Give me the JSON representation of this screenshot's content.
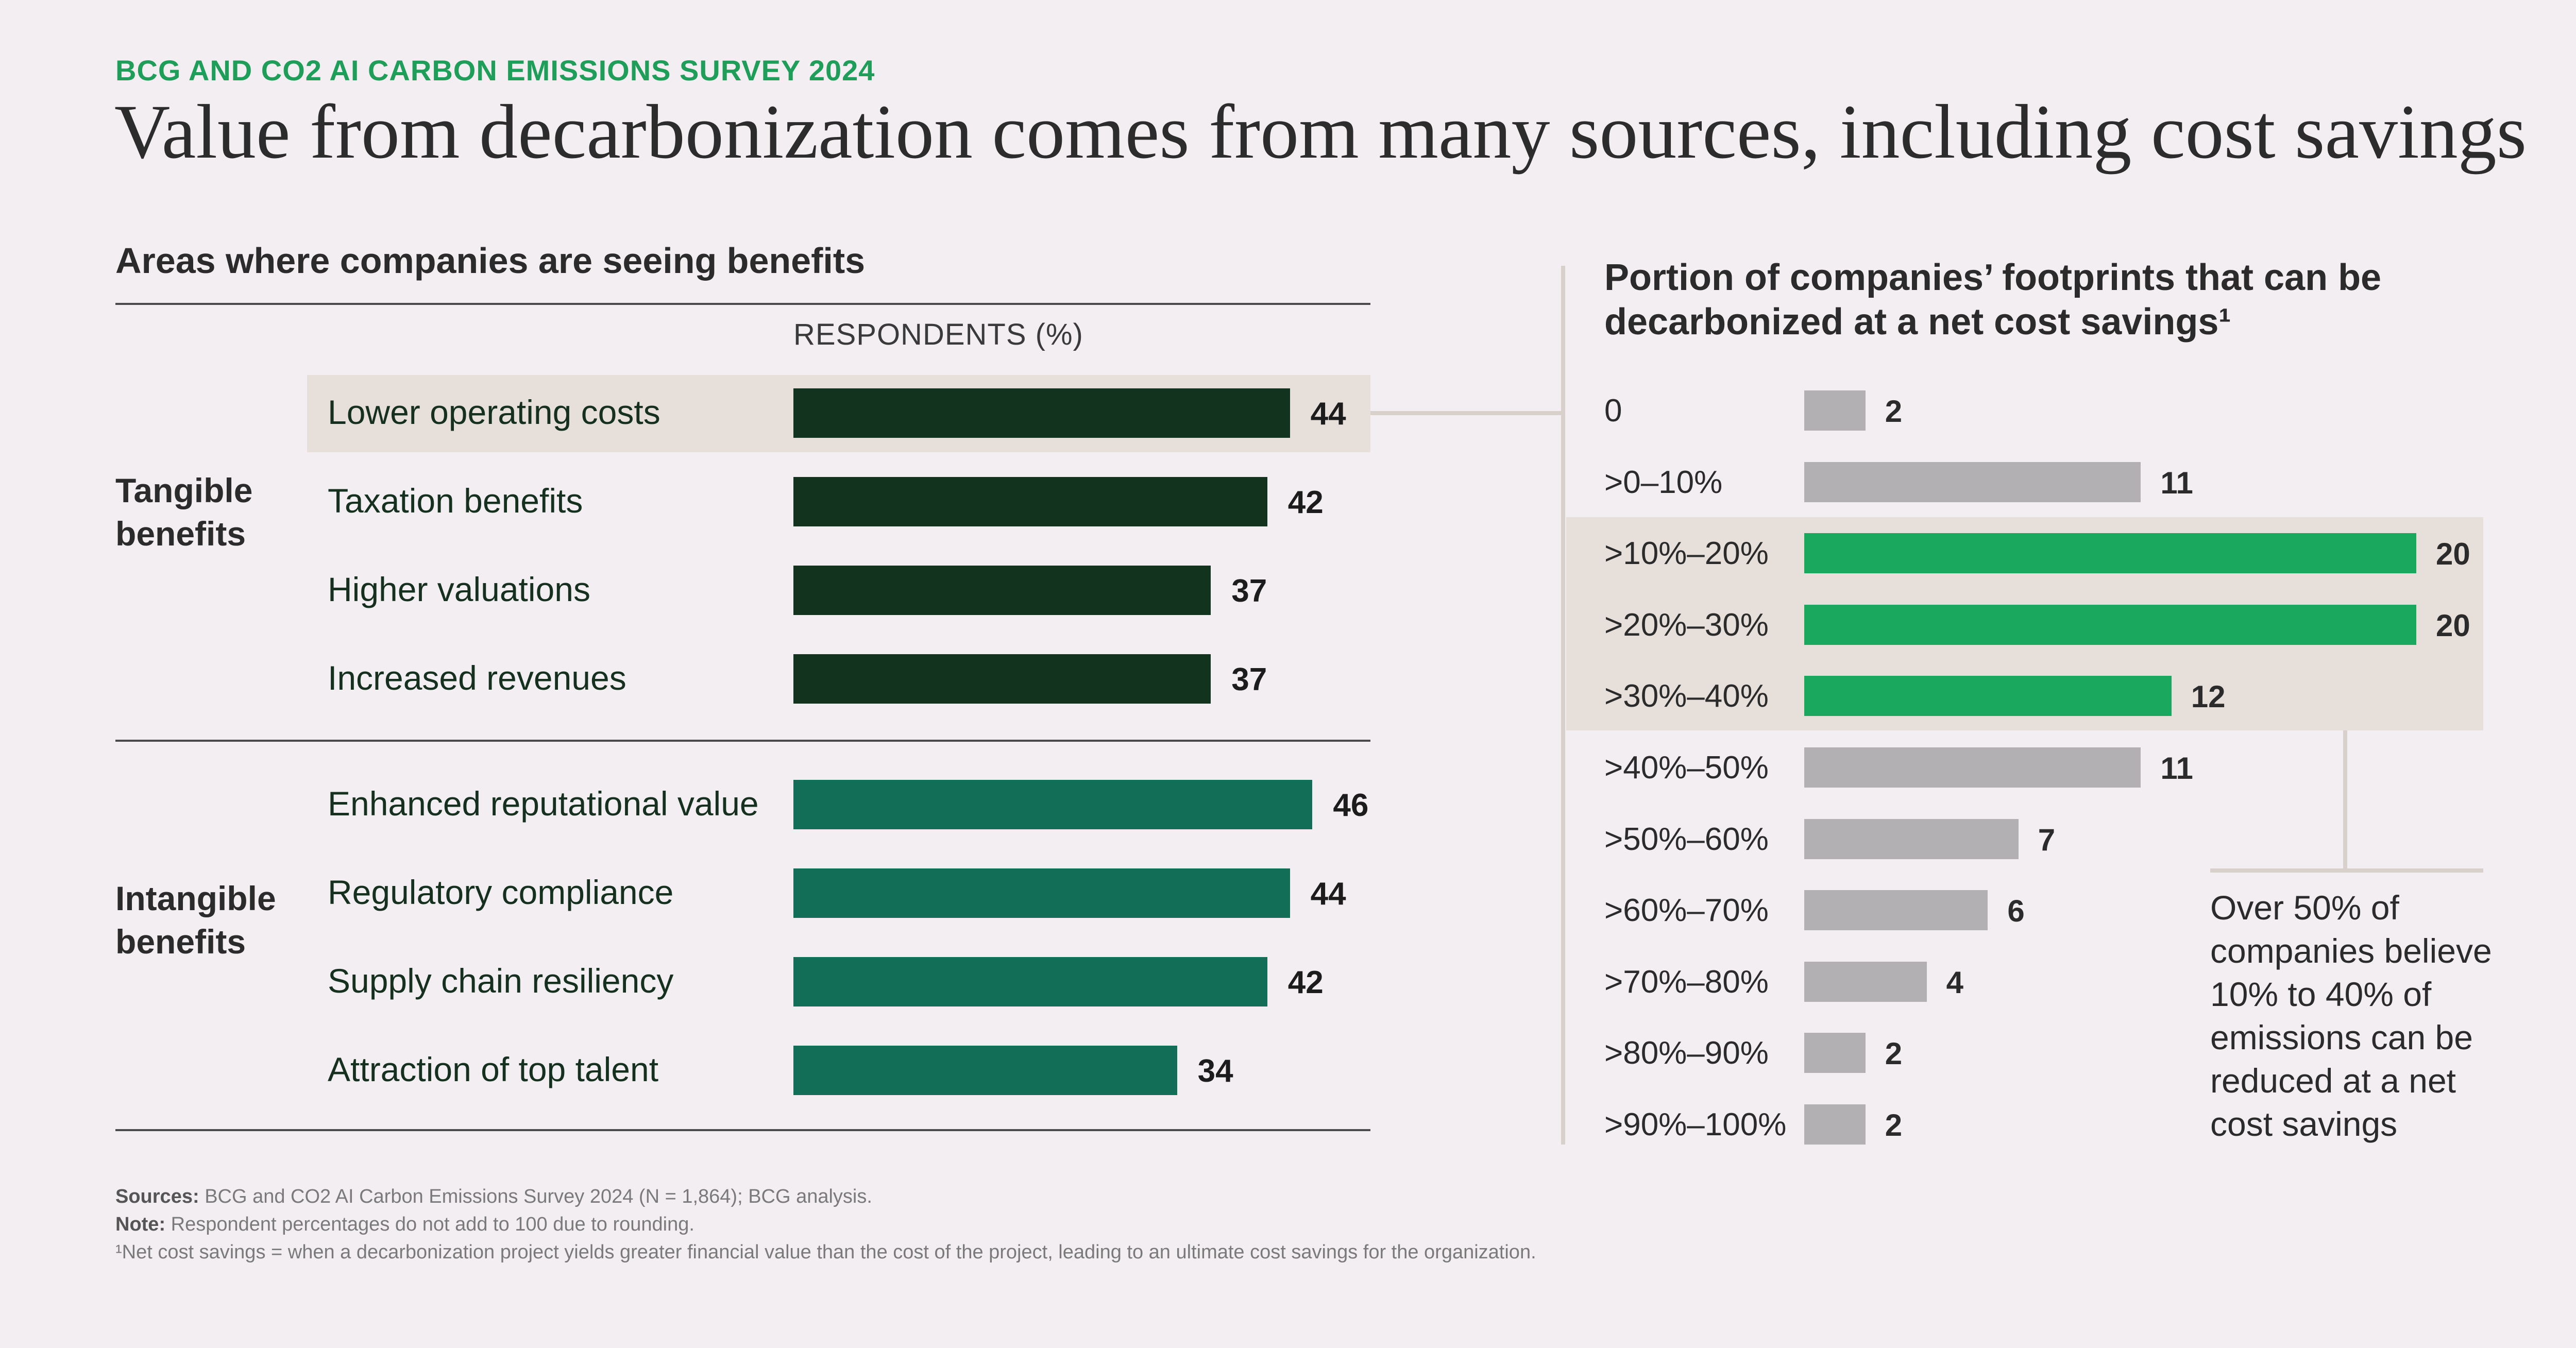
{
  "header": {
    "kicker": "BCG AND CO2 AI CARBON EMISSIONS SURVEY 2024",
    "title": "Value from decarbonization comes from many sources, including cost savings"
  },
  "colors": {
    "tangible": "#12341f",
    "intangible": "#136e57",
    "highlight_green": "#19a85e",
    "gray": "#b3b0b3",
    "highlight_bg": "#e6dfda",
    "kicker": "#1f9e5a"
  },
  "chart_data": [
    {
      "type": "bar",
      "orientation": "horizontal",
      "title": "Areas where companies are seeing benefits",
      "xlabel": "RESPONDENTS (%)",
      "highlighted": "Lower operating costs",
      "groups": [
        {
          "name": "Tangible benefits",
          "group_label": [
            "Tangible",
            "benefits"
          ],
          "categories": [
            "Lower operating costs",
            "Taxation benefits",
            "Higher valuations",
            "Increased revenues"
          ],
          "values": [
            44,
            42,
            37,
            37
          ]
        },
        {
          "name": "Intangible benefits",
          "group_label": [
            "Intangible",
            "benefits"
          ],
          "categories": [
            "Enhanced reputational value",
            "Regulatory compliance",
            "Supply chain resiliency",
            "Attraction of top talent"
          ],
          "values": [
            46,
            44,
            42,
            34
          ]
        }
      ]
    },
    {
      "type": "bar",
      "orientation": "horizontal",
      "title": "Portion of companies’ footprints that can be decarbonized at a net cost savings¹",
      "categories": [
        "0",
        ">0–10%",
        ">10%–20%",
        ">20%–30%",
        ">30%–40%",
        ">40%–50%",
        ">50%–60%",
        ">60%–70%",
        ">70%–80%",
        ">80%–90%",
        ">90%–100%"
      ],
      "values": [
        2,
        11,
        20,
        20,
        12,
        11,
        7,
        6,
        4,
        2,
        2
      ],
      "highlighted": [
        ">10%–20%",
        ">20%–30%",
        ">30%–40%"
      ],
      "annotation": "Over 50% of companies believe 10% to 40% of emissions can be reduced at a net cost savings"
    }
  ],
  "footer": {
    "sources_label": "Sources:",
    "sources": "BCG and CO2 AI Carbon Emissions Survey 2024 (N = 1,864); BCG analysis.",
    "note_label": "Note:",
    "note": "Respondent percentages do not add to 100 due to rounding.",
    "footnote": "¹Net cost savings = when a decarbonization project yields greater financial value than the cost of the project, leading to an ultimate cost savings for the organization."
  }
}
